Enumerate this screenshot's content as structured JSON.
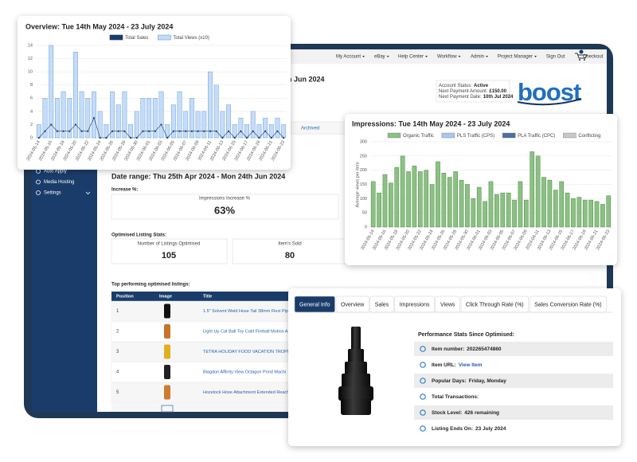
{
  "nav": {
    "items": [
      "My Account",
      "eBay",
      "Help Center",
      "Workflow",
      "Admin",
      "Project Manager",
      "Sign Out",
      "Checkout"
    ]
  },
  "app": {
    "heading": "th Jun 2024",
    "account": [
      {
        "label": "Account Status:",
        "value": "Active"
      },
      {
        "label": "Next Payment Amount:",
        "value": "£150.00"
      },
      {
        "label": "Next Payment Date:",
        "value": "10th Jul 2024"
      }
    ],
    "logo": "boost",
    "archived_tab": "Archived",
    "sidebar": [
      "Auto Apply",
      "Media Hosting",
      "Settings"
    ],
    "date_range": "Date range: Thu 25th Apr 2024 - Mon 24th Jun 2024",
    "increase": {
      "heading": "Increase %:",
      "label": "Impressions Increase %",
      "value": "63%"
    },
    "listing_stats": {
      "heading": "Optimised Listing Stats:",
      "items": [
        {
          "label": "Number of Listings Optimised",
          "value": 105
        },
        {
          "label": "Item's Sold",
          "value": 80
        }
      ]
    },
    "top_listings": {
      "heading": "Top performing optimised listings:",
      "columns": [
        "Position",
        "Image",
        "Title"
      ],
      "rows": [
        {
          "position": 1,
          "title": "1.5\" Solvent Weld Hose Tail 38mm Flexi Pipe"
        },
        {
          "position": 2,
          "title": "Light Up Cat Ball Toy Catit Fireball Motion A"
        },
        {
          "position": 3,
          "title": "TETRA HOLIDAY FOOD VACATION TROPICAL FI"
        },
        {
          "position": 4,
          "title": "Blagdon Affinity View Octagon Pond Machi"
        },
        {
          "position": 5,
          "title": "Hozelock Hose Attachment Extended Reach"
        }
      ]
    }
  },
  "overview_chart": {
    "type": "bar",
    "title": "Overview: Tue 14th May 2024 - 23 July 2024",
    "categories": [
      "2024-05-14",
      null,
      "2024-05-16",
      null,
      "2024-05-18",
      null,
      "2024-05-20",
      null,
      "2024-05-22",
      null,
      "2024-05-24",
      null,
      "2024-05-26",
      null,
      "2024-05-28",
      null,
      "2024-05-30",
      null,
      "2024-06-01",
      null,
      "2024-06-03",
      null,
      "2024-06-05",
      null,
      "2024-06-07",
      null,
      "2024-06-09",
      null,
      "2024-06-11",
      null,
      "2024-06-13",
      null,
      "2024-06-15",
      null,
      "2024-06-17",
      null,
      "2024-06-19",
      null,
      "2024-06-21",
      null,
      "2024-06-23"
    ],
    "series": [
      {
        "name": "Total Sales",
        "color": "#1a3c6a",
        "kind": "line",
        "values": [
          0,
          1,
          2,
          1,
          1,
          1,
          2,
          1,
          1,
          3,
          0,
          0,
          1,
          1,
          1,
          0,
          0,
          1,
          1,
          1,
          2,
          0,
          1,
          1,
          1,
          1,
          1,
          1,
          1,
          1,
          0,
          1,
          0,
          1,
          0,
          1,
          0,
          1,
          0,
          1,
          0
        ]
      },
      {
        "name": "Total Views (x10)",
        "color": "#c5dcf7",
        "kind": "bar",
        "values": [
          2,
          6,
          14,
          6,
          7,
          6,
          13,
          7,
          6,
          7,
          4,
          2,
          7,
          5,
          7,
          2,
          4,
          6,
          6,
          6,
          7,
          2,
          5,
          7,
          4,
          6,
          4,
          4,
          10,
          8,
          4,
          5,
          2,
          3,
          2,
          4,
          2,
          3,
          2,
          3,
          2
        ]
      }
    ],
    "ylim": [
      0,
      14
    ],
    "yticks": [
      0,
      2,
      4,
      6,
      8,
      10,
      12,
      14
    ],
    "grid": true
  },
  "impressions_chart": {
    "type": "bar",
    "title": "Impressions: Tue 14th May 2024 - 23 July 2024",
    "y_label": "Average views per item",
    "categories": [
      "2024-05-14",
      null,
      "2024-05-16",
      null,
      "2024-05-18",
      null,
      "2024-05-20",
      null,
      "2024-05-22",
      null,
      "2024-05-24",
      null,
      "2024-05-26",
      null,
      "2024-05-28",
      null,
      "2024-05-30",
      null,
      "2024-06-01",
      null,
      "2024-06-03",
      null,
      "2024-06-05",
      null,
      "2024-06-07",
      null,
      "2024-06-09",
      null,
      "2024-06-11",
      null,
      "2024-06-13",
      null,
      "2024-06-15",
      null,
      "2024-06-17",
      null,
      "2024-06-19",
      null,
      "2024-06-21",
      null,
      "2024-06-23"
    ],
    "series": [
      {
        "name": "Organic Traffic",
        "color": "#8cc084",
        "values": [
          160,
          120,
          185,
          155,
          210,
          250,
          195,
          215,
          195,
          200,
          150,
          230,
          190,
          175,
          195,
          165,
          150,
          100,
          140,
          90,
          160,
          115,
          120,
          120,
          95,
          160,
          95,
          265,
          250,
          175,
          165,
          130,
          160,
          120,
          100,
          105,
          95,
          95,
          90,
          80,
          110
        ]
      },
      {
        "name": "PLS Traffic (CPS)",
        "color": "#a8c8f0"
      },
      {
        "name": "PLA Traffic (CPC)",
        "color": "#4a6fa0"
      },
      {
        "name": "Conflicting",
        "color": "#c8c8c8"
      }
    ],
    "ylim": [
      0,
      300
    ],
    "yticks": [
      0,
      50,
      100,
      150,
      200,
      250,
      300
    ],
    "grid": true
  },
  "item_card": {
    "tabs": [
      "General Info",
      "Overview",
      "Sales",
      "Impressions",
      "Views",
      "Click Through Rate (%)",
      "Sales Conversion Rate (%)"
    ],
    "active_tab": 0,
    "stats_heading": "Performance Stats Since Optimised:",
    "stats": [
      {
        "label": "Item number:",
        "value": "202265474860"
      },
      {
        "label": "Item URL:",
        "value": "View Item"
      },
      {
        "label": "Popular Days:",
        "value": "Friday, Monday"
      },
      {
        "label": "Total Transactions:"
      },
      {
        "label": "Stock Level:",
        "value": "426 remaining"
      },
      {
        "label": "Listing Ends On:",
        "value": "23 July 2024"
      }
    ]
  }
}
